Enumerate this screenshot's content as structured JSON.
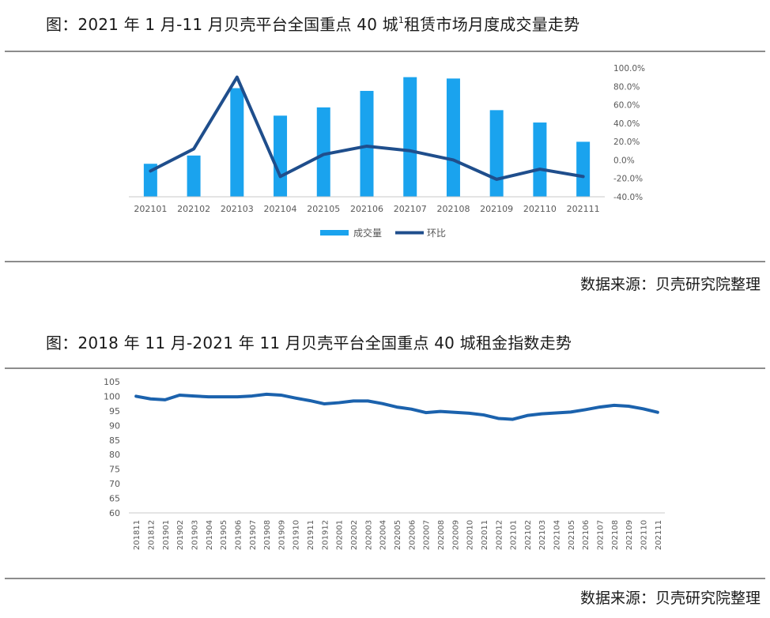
{
  "figure1": {
    "title_text": "图：2021 年 1 月-11 月贝壳平台全国重点 40 城",
    "title_sup": "1",
    "title_suffix": "租赁市场月度成交量走势",
    "source": "数据来源：贝壳研究院整理"
  },
  "figure2": {
    "title_text": "图：2018 年 11 月-2021 年 11 月贝壳平台全国重点 40 城租金指数走势",
    "source": "数据来源：贝壳研究院整理"
  },
  "chart_data": [
    {
      "type": "bar",
      "title": "2021 年 1 月-11 月贝壳平台全国重点 40 城租赁市场月度成交量走势",
      "categories": [
        "202101",
        "202102",
        "202103",
        "202104",
        "202105",
        "202106",
        "202107",
        "202108",
        "202109",
        "202110",
        "202111"
      ],
      "series": [
        {
          "name": "成交量",
          "type": "bar",
          "axis": "left",
          "color": "#1aa3ee",
          "values": [
            24,
            30,
            79,
            59,
            65,
            77,
            87,
            86,
            63,
            54,
            40
          ]
        },
        {
          "name": "环比",
          "type": "line",
          "axis": "right",
          "color": "#1f4e8c",
          "values": [
            -12,
            12,
            90,
            -18,
            6,
            15,
            10,
            0,
            -21,
            -10,
            -18
          ]
        }
      ],
      "y2_ticks": [
        "100.0%",
        "80.0%",
        "60.0%",
        "40.0%",
        "20.0%",
        "0.0%",
        "-20.0%",
        "-40.0%"
      ],
      "y2lim": [
        -40,
        100
      ],
      "ylim": [
        0,
        100
      ],
      "legend_position": "bottom"
    },
    {
      "type": "line",
      "title": "2018 年 11 月-2021 年 11 月贝壳平台全国重点 40 城租金指数走势",
      "categories": [
        "201811",
        "201812",
        "201901",
        "201902",
        "201903",
        "201904",
        "201905",
        "201906",
        "201907",
        "201908",
        "201909",
        "201910",
        "201911",
        "201912",
        "202001",
        "202002",
        "202003",
        "202004",
        "202005",
        "202006",
        "202007",
        "202008",
        "202009",
        "202010",
        "202011",
        "202012",
        "202101",
        "202102",
        "202103",
        "202104",
        "202105",
        "202106",
        "202107",
        "202108",
        "202109",
        "202110",
        "202111"
      ],
      "series": [
        {
          "name": "租金指数",
          "color": "#1b62ad",
          "values": [
            100,
            99.1,
            98.8,
            100.4,
            100.1,
            99.8,
            99.8,
            99.8,
            100.1,
            100.7,
            100.4,
            99.4,
            98.5,
            97.4,
            97.8,
            98.4,
            98.4,
            97.5,
            96.3,
            95.6,
            94.4,
            94.8,
            94.5,
            94.2,
            93.6,
            92.4,
            92.1,
            93.4,
            94.0,
            94.3,
            94.6,
            95.4,
            96.3,
            96.9,
            96.6,
            95.7,
            94.5
          ]
        }
      ],
      "y_ticks": [
        "105",
        "100",
        "95",
        "90",
        "85",
        "80",
        "75",
        "70",
        "65",
        "60"
      ],
      "ylim": [
        60,
        105
      ]
    }
  ]
}
